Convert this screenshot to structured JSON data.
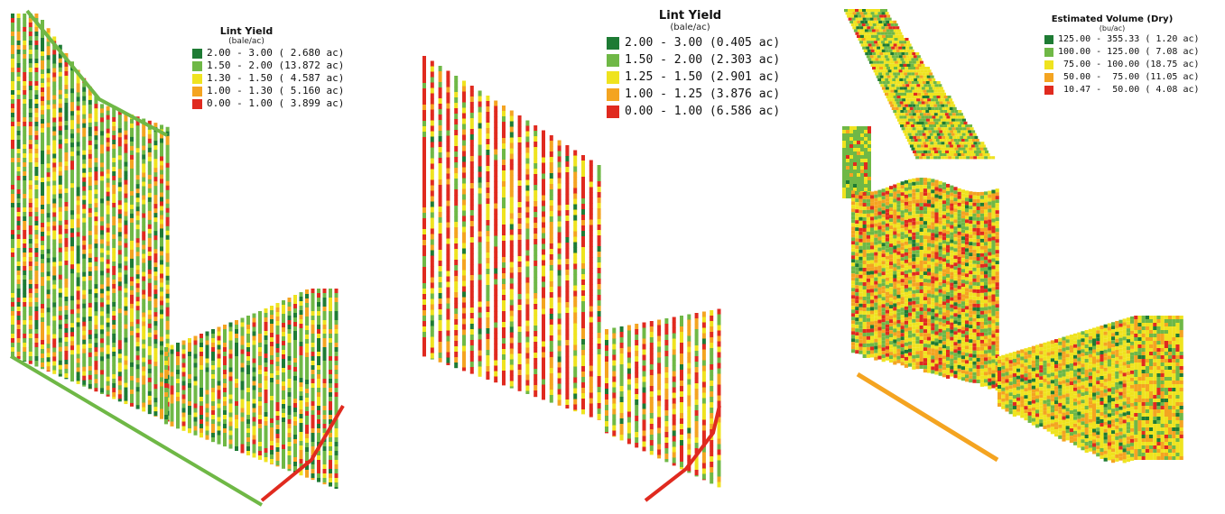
{
  "maps": [
    {
      "title": "Lint Yield",
      "unit": "(bale/ac)",
      "legend": [
        {
          "color": "#1e7b34",
          "label": "2.00 - 3.00 ( 2.680 ac)"
        },
        {
          "color": "#6fb846",
          "label": "1.50 - 2.00 (13.872 ac)"
        },
        {
          "color": "#efe31f",
          "label": "1.30 - 1.50 ( 4.587 ac)"
        },
        {
          "color": "#f4a421",
          "label": "1.00 - 1.30 ( 5.160 ac)"
        },
        {
          "color": "#e02a1f",
          "label": "0.00 - 1.00 ( 3.899 ac)"
        }
      ]
    },
    {
      "title": "Lint Yield",
      "unit": "(bale/ac)",
      "legend": [
        {
          "color": "#1e7b34",
          "label": "2.00 - 3.00 (0.405 ac)"
        },
        {
          "color": "#6fb846",
          "label": "1.50 - 2.00 (2.303 ac)"
        },
        {
          "color": "#efe31f",
          "label": "1.25 - 1.50 (2.901 ac)"
        },
        {
          "color": "#f4a421",
          "label": "1.00 - 1.25 (3.876 ac)"
        },
        {
          "color": "#e02a1f",
          "label": "0.00 - 1.00 (6.586 ac)"
        }
      ]
    },
    {
      "title": "Estimated Volume (Dry)",
      "unit": "(bu/ac)",
      "legend": [
        {
          "color": "#1e7b34",
          "label": "125.00 - 355.33 ( 1.20 ac)"
        },
        {
          "color": "#6fb846",
          "label": "100.00 - 125.00 ( 7.08 ac)"
        },
        {
          "color": "#efe31f",
          "label": " 75.00 - 100.00 (18.75 ac)"
        },
        {
          "color": "#f4a421",
          "label": " 50.00 -  75.00 (11.05 ac)"
        },
        {
          "color": "#e02a1f",
          "label": " 10.47 -  50.00 ( 4.08 ac)"
        }
      ]
    }
  ]
}
